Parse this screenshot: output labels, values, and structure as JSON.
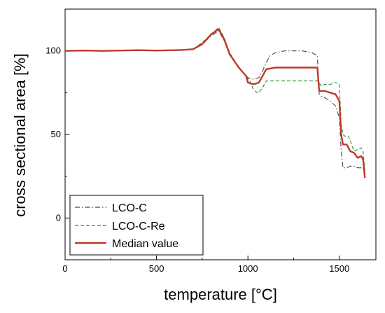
{
  "chart_data": {
    "type": "line",
    "title": "",
    "xlabel": "temperature [°C]",
    "ylabel": "cross sectional area [%]",
    "xlim": [
      0,
      1700
    ],
    "ylim": [
      -25,
      125
    ],
    "x_ticks": [
      0,
      500,
      1000,
      1500
    ],
    "y_ticks": [
      0,
      50,
      100
    ],
    "legend_position": "bottom-left",
    "grid": false,
    "series": [
      {
        "name": "LCO-C",
        "color": "#444444",
        "dash": "dash-dot",
        "x": [
          0,
          100,
          200,
          300,
          400,
          500,
          600,
          650,
          700,
          750,
          800,
          840,
          870,
          900,
          950,
          1000,
          1030,
          1060,
          1080,
          1100,
          1120,
          1150,
          1200,
          1250,
          1300,
          1350,
          1380,
          1390,
          1400,
          1420,
          1450,
          1480,
          1500,
          1510,
          1520,
          1540,
          1560,
          1580,
          1600,
          1620,
          1630,
          1640
        ],
        "y": [
          100,
          100.5,
          100,
          100.3,
          100.5,
          100.2,
          100.5,
          100.8,
          101,
          104,
          109,
          112,
          106,
          98,
          90,
          84,
          83,
          84,
          88,
          93,
          97,
          99,
          100,
          100,
          100,
          99,
          97,
          74,
          73,
          72,
          70,
          67,
          60,
          40,
          30,
          30,
          31,
          31,
          30,
          30,
          30,
          25
        ]
      },
      {
        "name": "LCO-C-Re",
        "color": "#2a8a2a",
        "dash": "dashed",
        "x": [
          0,
          100,
          200,
          300,
          400,
          500,
          600,
          650,
          700,
          750,
          800,
          840,
          870,
          900,
          950,
          990,
          1010,
          1030,
          1050,
          1060,
          1080,
          1100,
          1150,
          1200,
          1250,
          1300,
          1350,
          1380,
          1390,
          1400,
          1420,
          1450,
          1480,
          1500,
          1510,
          1520,
          1530,
          1550,
          1580,
          1600,
          1620,
          1630,
          1640
        ],
        "y": [
          100,
          100.4,
          100.1,
          100.2,
          100.3,
          100.2,
          100.4,
          100.6,
          101,
          105,
          110,
          114,
          108,
          99,
          90,
          85,
          82,
          77,
          75,
          75,
          78,
          82,
          82,
          82,
          82,
          82,
          82,
          82,
          81,
          79,
          80,
          80,
          81,
          80,
          56,
          50,
          49,
          49,
          40,
          41,
          42,
          40,
          28
        ]
      },
      {
        "name": "Median value",
        "color": "#c0392b",
        "dash": "solid",
        "x": [
          0,
          100,
          200,
          300,
          400,
          500,
          600,
          650,
          700,
          750,
          800,
          840,
          870,
          900,
          950,
          990,
          1000,
          1030,
          1060,
          1080,
          1100,
          1150,
          1200,
          1250,
          1300,
          1350,
          1380,
          1390,
          1400,
          1420,
          1450,
          1480,
          1500,
          1510,
          1520,
          1540,
          1560,
          1580,
          1600,
          1620,
          1630,
          1640
        ],
        "y": [
          100,
          100.2,
          100,
          100.2,
          100.4,
          100.2,
          100.4,
          100.6,
          101,
          104,
          110,
          113,
          107,
          98,
          90,
          85,
          81,
          80,
          81,
          85,
          89,
          90,
          90,
          90,
          90,
          90,
          90,
          76,
          76,
          76,
          75,
          74,
          70,
          50,
          44,
          44,
          40,
          39,
          36,
          37,
          35,
          24
        ]
      }
    ]
  }
}
